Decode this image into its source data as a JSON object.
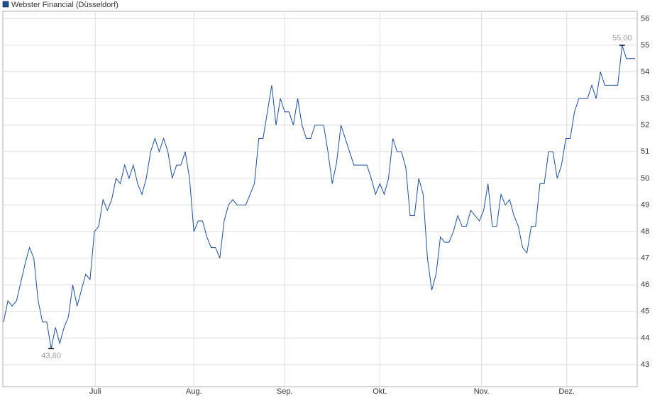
{
  "chart_data": {
    "type": "line",
    "series": [
      {
        "name": "Webster Financial (Düsseldorf)",
        "color": "#1f4e96",
        "values": [
          44.6,
          45.4,
          45.2,
          45.4,
          46.1,
          46.8,
          47.4,
          47.0,
          45.4,
          44.6,
          44.6,
          43.6,
          44.4,
          43.8,
          44.4,
          44.8,
          46.0,
          45.2,
          45.8,
          46.4,
          46.2,
          48.0,
          48.2,
          49.2,
          48.8,
          49.2,
          50.0,
          49.8,
          50.5,
          50.0,
          50.5,
          49.8,
          49.4,
          50.0,
          51.0,
          51.5,
          51.0,
          51.5,
          51.0,
          50.0,
          50.5,
          50.5,
          51.0,
          50.0,
          48.0,
          48.4,
          48.4,
          47.8,
          47.4,
          47.4,
          47.0,
          48.4,
          49.0,
          49.2,
          49.0,
          49.0,
          49.0,
          49.4,
          49.8,
          51.5,
          51.5,
          52.5,
          53.5,
          52.0,
          53.0,
          52.5,
          52.5,
          52.0,
          53.0,
          52.0,
          51.5,
          51.5,
          52.0,
          52.0,
          52.0,
          51.0,
          49.8,
          50.6,
          52.0,
          51.5,
          51.0,
          50.5,
          50.5,
          50.5,
          50.5,
          50.0,
          49.4,
          49.8,
          49.4,
          50.0,
          51.5,
          51.0,
          51.0,
          50.4,
          48.6,
          48.6,
          50.0,
          49.4,
          47.0,
          45.8,
          46.4,
          47.8,
          47.6,
          47.6,
          48.0,
          48.6,
          48.2,
          48.2,
          48.8,
          48.6,
          48.4,
          48.8,
          49.8,
          48.2,
          48.2,
          49.4,
          49.0,
          49.2,
          48.6,
          48.2,
          47.4,
          47.2,
          48.2,
          48.2,
          49.8,
          49.8,
          51.0,
          51.0,
          50.0,
          50.5,
          51.5,
          51.5,
          52.5,
          53.0,
          53.0,
          53.0,
          53.5,
          53.0,
          54.0,
          53.5,
          53.5,
          53.5,
          53.5,
          55.0,
          54.5,
          54.5,
          54.5
        ],
        "value_labels": [
          null,
          null,
          null,
          null,
          null,
          null,
          null,
          null,
          null,
          null,
          null,
          "43,60",
          null,
          null,
          null,
          null,
          null,
          null,
          null,
          null,
          null,
          null,
          null,
          null,
          null,
          null,
          null,
          null,
          null,
          null,
          null,
          null,
          null,
          null,
          null,
          null,
          null,
          null,
          null,
          null,
          null,
          null,
          null,
          null,
          null,
          null,
          null,
          null,
          null,
          null,
          null,
          null,
          null,
          null,
          null,
          null,
          null,
          null,
          null,
          null,
          null,
          null,
          null,
          null,
          null,
          null,
          null,
          null,
          null,
          null,
          null,
          null,
          null,
          null,
          null,
          null,
          null,
          null,
          null,
          null,
          null,
          null,
          null,
          null,
          null,
          null,
          null,
          null,
          null,
          null,
          null,
          null,
          null,
          null,
          null,
          null,
          null,
          null,
          null,
          null,
          null,
          null,
          null,
          null,
          null,
          null,
          null,
          null,
          null,
          null,
          null,
          null,
          null,
          null,
          null,
          null,
          null,
          null,
          null,
          null,
          null,
          null,
          null,
          null,
          null,
          null,
          null,
          null,
          null,
          null,
          null,
          null,
          null,
          null,
          null,
          null,
          null,
          null,
          null,
          null,
          null,
          null,
          null,
          "55,00",
          null,
          null,
          null
        ]
      }
    ],
    "xlim": [
      0,
      146
    ],
    "xticks": [
      {
        "value": 21.2,
        "label": "Juli"
      },
      {
        "value": 44,
        "label": "Aug."
      },
      {
        "value": 65,
        "label": "Sep."
      },
      {
        "value": 87,
        "label": "Okt."
      },
      {
        "value": 110.5,
        "label": "Nov."
      },
      {
        "value": 130.2,
        "label": "Dez."
      }
    ],
    "ylim": [
      42.2,
      56.25
    ],
    "yticks": [
      43,
      44,
      45,
      46,
      47,
      48,
      49,
      50,
      51,
      52,
      53,
      54,
      55,
      56
    ],
    "grid": true
  }
}
